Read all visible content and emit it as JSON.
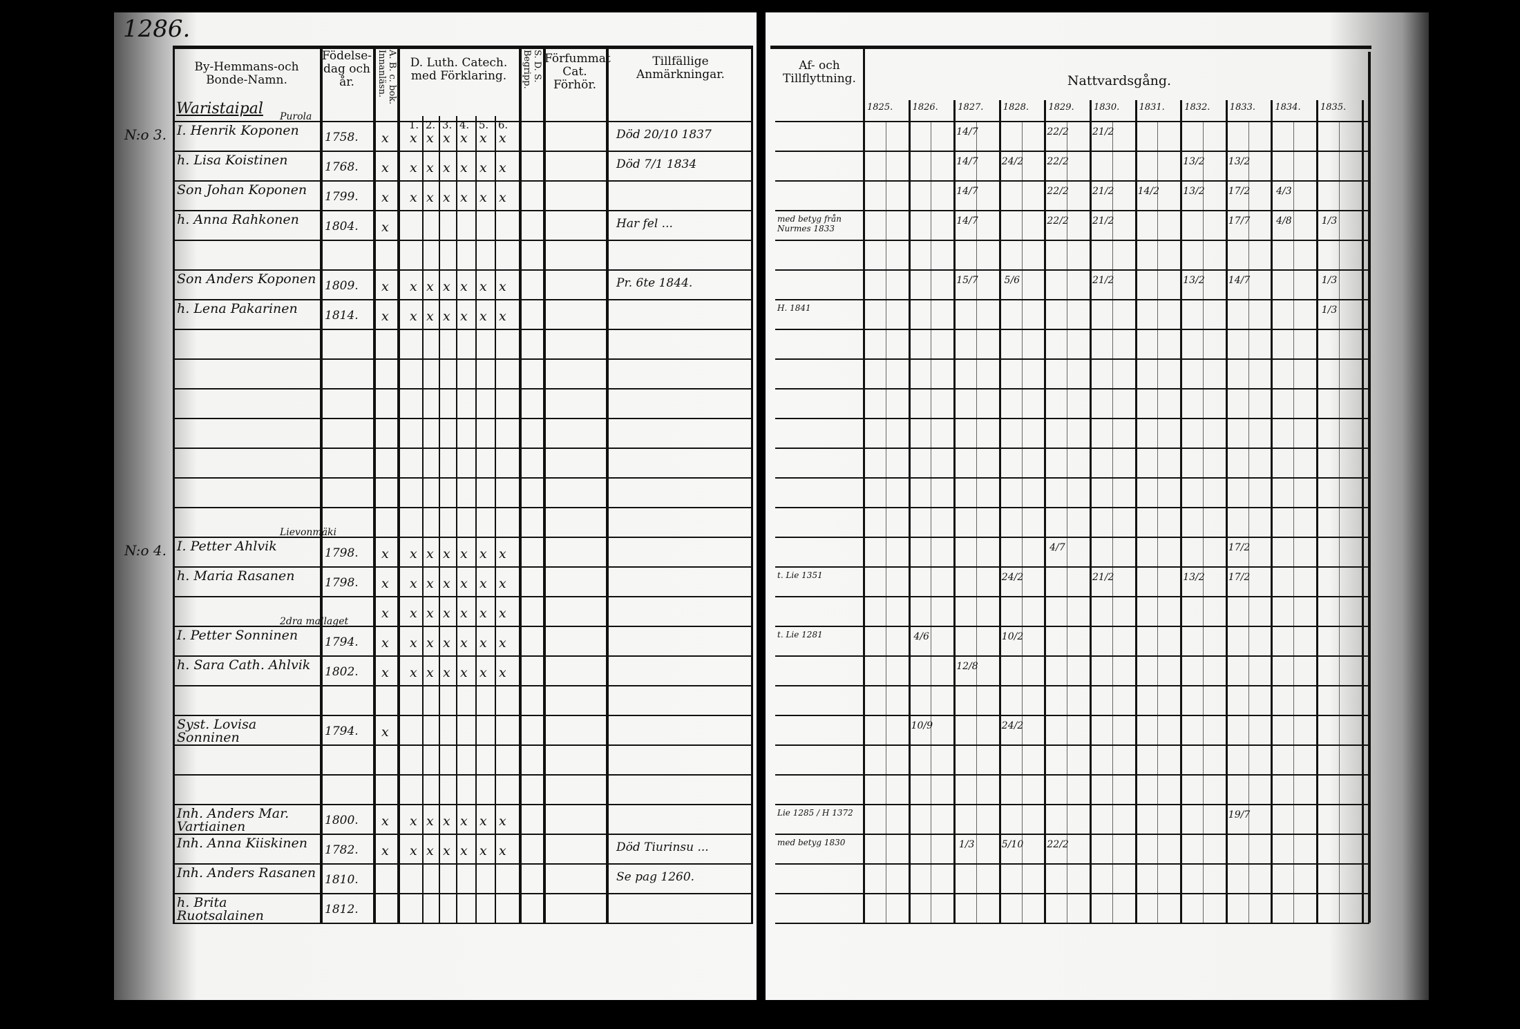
{
  "page_number": "1286.",
  "left_headers": {
    "name": "By-Hemmans-och Bonde-Namn.",
    "birth": "Födelse-dag och år.",
    "abc": "A. B. c. bok. Innanläsn.",
    "catech": "D. Luth. Catech. med Förklaring.",
    "catech_parts": [
      "1.",
      "2.",
      "3.",
      "4.",
      "5.",
      "6."
    ],
    "sds": "S. D. S. Begripp.",
    "forfum": "Förfummat Cat. Förhör.",
    "notes": "Tillfällige Anmärkningar."
  },
  "right_headers": {
    "moving": "Af- och Tillflyttning.",
    "communion": "Nattvardsgång.",
    "years": [
      "1825.",
      "1826.",
      "1827.",
      "1828.",
      "1829.",
      "1830.",
      "1831.",
      "1832.",
      "1833.",
      "1834.",
      "1835."
    ]
  },
  "village": "Waristaipal",
  "rows": [
    {
      "mark": "N:o 3.",
      "above": "Purola",
      "name": "I. Henrik Koponen",
      "birth": "1758.",
      "abc": "x",
      "catech": [
        "x",
        "x",
        "x",
        "x",
        "x",
        "x"
      ],
      "note": "Död 20/10 1837",
      "communion": [
        "",
        "",
        "14/7",
        "",
        "22/2",
        "21/2",
        "",
        "",
        "",
        "",
        ""
      ]
    },
    {
      "mark": "",
      "name": "h. Lisa Koistinen",
      "birth": "1768.",
      "abc": "x",
      "catech": [
        "x",
        "x",
        "x",
        "x",
        "x",
        "x"
      ],
      "note": "Död 7/1 1834",
      "communion": [
        "",
        "",
        "14/7",
        "24/2",
        "22/2",
        "",
        "",
        "13/2",
        "13/2",
        "",
        ""
      ]
    },
    {
      "mark": "",
      "name": "Son Johan Koponen",
      "birth": "1799.",
      "abc": "x",
      "catech": [
        "x",
        "x",
        "x",
        "x",
        "x",
        "x"
      ],
      "communion": [
        "",
        "",
        "14/7",
        "",
        "22/2",
        "21/2",
        "14/2",
        "13/2",
        "17/2",
        "4/3",
        ""
      ]
    },
    {
      "mark": "",
      "name": "h. Anna Rahkonen",
      "birth": "1804.",
      "abc": "x",
      "catech": [
        "",
        "",
        "",
        "",
        "",
        ""
      ],
      "note": "Har fel ...",
      "moving": "med betyg från Nurmes 1833",
      "communion": [
        "",
        "",
        "14/7",
        "",
        "22/2",
        "21/2",
        "",
        "",
        "17/7",
        "4/8",
        "1/3"
      ]
    },
    {},
    {
      "name": "Son Anders Koponen",
      "birth": "1809.",
      "abc": "x",
      "catech": [
        "x",
        "x",
        "x",
        "x",
        "x",
        "x"
      ],
      "note": "Pr. 6te 1844.",
      "communion": [
        "",
        "",
        "15/7",
        "5/6",
        "",
        "21/2",
        "",
        "13/2",
        "14/7",
        "",
        "1/3"
      ]
    },
    {
      "name": "h. Lena Pakarinen",
      "birth": "1814.",
      "abc": "x",
      "catech": [
        "x",
        "x",
        "x",
        "x",
        "x",
        "x"
      ],
      "moving": "H. 1841",
      "communion": [
        "",
        "",
        "",
        "",
        "",
        "",
        "",
        "",
        "",
        "",
        "1/3"
      ]
    },
    {},
    {},
    {},
    {},
    {},
    {},
    {},
    {
      "mark": "N:o 4.",
      "above": "Lievonmäki",
      "name": "I. Petter Ahlvik",
      "birth": "1798.",
      "abc": "x",
      "catech": [
        "x",
        "x",
        "x",
        "x",
        "x",
        "x"
      ],
      "communion": [
        "",
        "",
        "",
        "",
        "4/7",
        "",
        "",
        "",
        "17/2",
        "",
        ""
      ]
    },
    {
      "name": "h. Maria Rasanen",
      "birth": "1798.",
      "abc": "x",
      "catech": [
        "x",
        "x",
        "x",
        "x",
        "x",
        "x"
      ],
      "moving": "t. Lie 1351",
      "communion": [
        "",
        "",
        "",
        "24/2",
        "",
        "21/2",
        "",
        "13/2",
        "17/2",
        "",
        ""
      ]
    },
    {
      "abc": "x",
      "catech": [
        "x",
        "x",
        "x",
        "x",
        "x",
        "x"
      ]
    },
    {
      "above": "2dra mallaget",
      "name": "I. Petter Sonninen",
      "birth": "1794.",
      "abc": "x",
      "catech": [
        "x",
        "x",
        "x",
        "x",
        "x",
        "x"
      ],
      "moving": "t. Lie 1281",
      "communion": [
        "",
        "4/6",
        "",
        "10/2",
        "",
        "",
        "",
        "",
        "",
        "",
        ""
      ]
    },
    {
      "name": "h. Sara Cath. Ahlvik",
      "birth": "1802.",
      "abc": "x",
      "catech": [
        "x",
        "x",
        "x",
        "x",
        "x",
        "x"
      ],
      "communion": [
        "",
        "",
        "12/8",
        "",
        "",
        "",
        "",
        "",
        "",
        "",
        ""
      ]
    },
    {},
    {
      "name": "Syst. Lovisa Sonninen",
      "birth": "1794.",
      "abc": "x",
      "communion": [
        "",
        "10/9",
        "",
        "24/2",
        "",
        "",
        "",
        "",
        "",
        "",
        ""
      ]
    },
    {},
    {},
    {
      "name": "Inh. Anders Mar. Vartiainen",
      "birth": "1800.",
      "abc": "x",
      "catech": [
        "x",
        "x",
        "x",
        "x",
        "x",
        "x"
      ],
      "moving": "Lie 1285 / H 1372",
      "communion": [
        "",
        "",
        "",
        "",
        "",
        "",
        "",
        "",
        "19/7",
        "",
        ""
      ]
    },
    {
      "name": "Inh. Anna Kiiskinen",
      "birth": "1782.",
      "abc": "x",
      "catech": [
        "x",
        "x",
        "x",
        "x",
        "x",
        "x"
      ],
      "note": "Död Tiurinsu ...",
      "moving": "med betyg 1830",
      "communion": [
        "",
        "",
        "1/3",
        "5/10",
        "22/2",
        "",
        "",
        "",
        "",
        "",
        ""
      ]
    },
    {
      "name": "Inh. Anders Rasanen",
      "birth": "1810.",
      "note": "Se pag 1260."
    },
    {
      "name": "h. Brita Ruotsalainen",
      "birth": "1812."
    }
  ]
}
